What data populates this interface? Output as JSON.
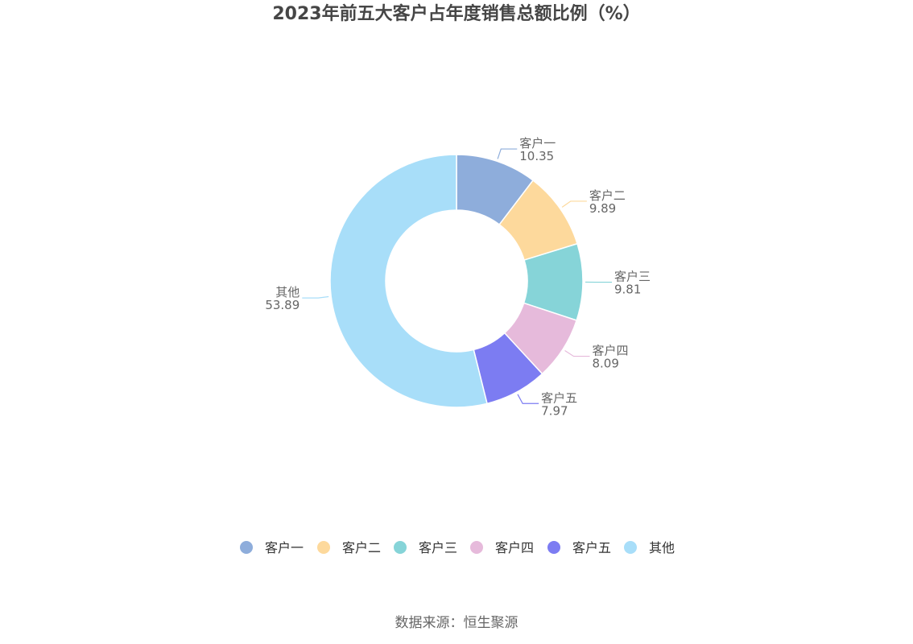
{
  "chart_data": {
    "type": "pie",
    "title": "2023年前五大客户占年度销售总额比例（%）",
    "categories": [
      "客户一",
      "客户二",
      "客户三",
      "客户四",
      "客户五",
      "其他"
    ],
    "values": [
      10.35,
      9.89,
      9.81,
      8.09,
      7.97,
      53.89
    ],
    "value_labels": [
      "10.35",
      "9.89",
      "9.81",
      "8.09",
      "7.97",
      "53.89"
    ],
    "colors": [
      "#8EADDB",
      "#FDD99C",
      "#86D4D8",
      "#E6BADB",
      "#7C7CF2",
      "#A8DEF9"
    ],
    "donut": true,
    "legend_position": "bottom"
  },
  "source": "数据来源：恒生聚源"
}
